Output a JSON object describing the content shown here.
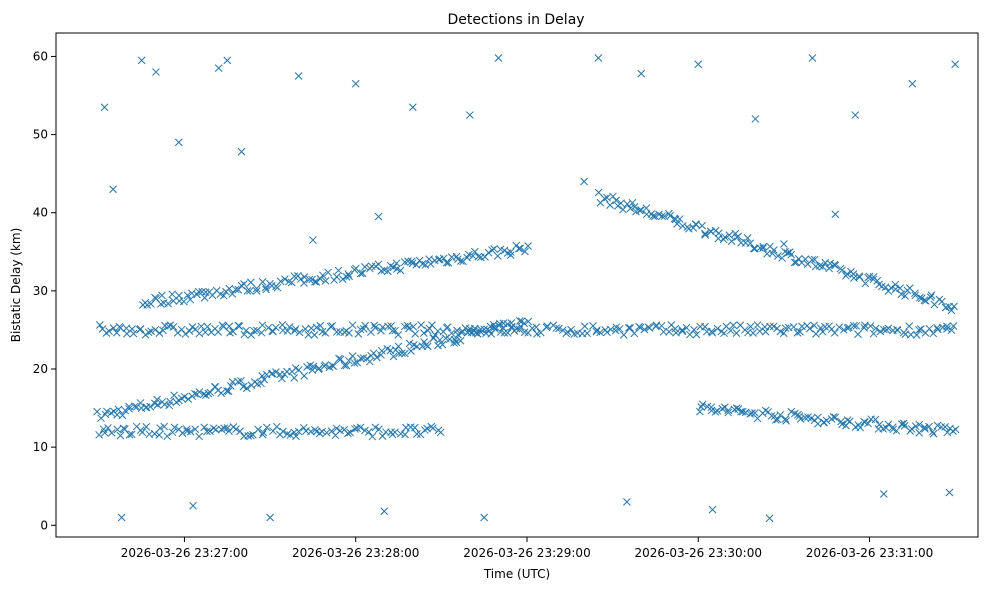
{
  "chart_data": {
    "type": "scatter",
    "title": "Detections in Delay",
    "xlabel": "Time (UTC)",
    "ylabel": "Bistatic Delay (km)",
    "x_unit": "time",
    "xlim": [
      "2026-03-26 23:26:15",
      "2026-03-26 23:31:38"
    ],
    "ylim": [
      -1.5,
      63
    ],
    "x_ticks": [
      "2026-03-26 23:27:00",
      "2026-03-26 23:28:00",
      "2026-03-26 23:29:00",
      "2026-03-26 23:30:00",
      "2026-03-26 23:31:00"
    ],
    "y_ticks": [
      0,
      10,
      20,
      30,
      40,
      50,
      60
    ],
    "marker": "x",
    "color": "#1f77b4",
    "grid": false,
    "tracks": [
      {
        "from": [
          "2026-03-26 23:26:30",
          14.0
        ],
        "to": [
          "2026-03-26 23:29:00",
          26.0
        ],
        "n": 150
      },
      {
        "from": [
          "2026-03-26 23:26:45",
          28.5
        ],
        "to": [
          "2026-03-26 23:29:00",
          35.5
        ],
        "n": 130
      },
      {
        "from": [
          "2026-03-26 23:29:25",
          42.0
        ],
        "to": [
          "2026-03-26 23:31:30",
          28.0
        ],
        "n": 130
      },
      {
        "from": [
          "2026-03-26 23:30:00",
          15.0
        ],
        "to": [
          "2026-03-26 23:31:30",
          12.0
        ],
        "n": 90
      },
      {
        "from": [
          "2026-03-26 23:26:30",
          12.0
        ],
        "to": [
          "2026-03-26 23:28:30",
          12.0
        ],
        "n": 100
      },
      {
        "from": [
          "2026-03-26 23:26:30",
          25.0
        ],
        "to": [
          "2026-03-26 23:31:30",
          25.0
        ],
        "n": 260
      }
    ],
    "points": [
      [
        "2026-03-26 23:26:32",
        53.5
      ],
      [
        "2026-03-26 23:26:45",
        59.5
      ],
      [
        "2026-03-26 23:26:50",
        58.0
      ],
      [
        "2026-03-26 23:27:15",
        59.5
      ],
      [
        "2026-03-26 23:28:50",
        59.8
      ],
      [
        "2026-03-26 23:29:25",
        59.8
      ],
      [
        "2026-03-26 23:30:00",
        59.0
      ],
      [
        "2026-03-26 23:30:40",
        59.8
      ],
      [
        "2026-03-26 23:31:30",
        59.0
      ],
      [
        "2026-03-26 23:26:35",
        43.0
      ],
      [
        "2026-03-26 23:26:58",
        49.0
      ],
      [
        "2026-03-26 23:27:12",
        58.5
      ],
      [
        "2026-03-26 23:27:20",
        47.8
      ],
      [
        "2026-03-26 23:27:40",
        57.5
      ],
      [
        "2026-03-26 23:28:00",
        56.5
      ],
      [
        "2026-03-26 23:28:20",
        53.5
      ],
      [
        "2026-03-26 23:28:40",
        52.5
      ],
      [
        "2026-03-26 23:29:20",
        44.0
      ],
      [
        "2026-03-26 23:29:40",
        57.8
      ],
      [
        "2026-03-26 23:30:20",
        52.0
      ],
      [
        "2026-03-26 23:30:55",
        52.5
      ],
      [
        "2026-03-26 23:31:15",
        56.5
      ],
      [
        "2026-03-26 23:26:38",
        1.0
      ],
      [
        "2026-03-26 23:27:03",
        2.5
      ],
      [
        "2026-03-26 23:27:30",
        1.0
      ],
      [
        "2026-03-26 23:28:10",
        1.8
      ],
      [
        "2026-03-26 23:28:45",
        1.0
      ],
      [
        "2026-03-26 23:29:35",
        3.0
      ],
      [
        "2026-03-26 23:30:05",
        2.0
      ],
      [
        "2026-03-26 23:30:25",
        0.9
      ],
      [
        "2026-03-26 23:31:05",
        4.0
      ],
      [
        "2026-03-26 23:31:28",
        4.2
      ],
      [
        "2026-03-26 23:28:08",
        39.5
      ],
      [
        "2026-03-26 23:30:48",
        39.8
      ],
      [
        "2026-03-26 23:27:45",
        36.5
      ],
      [
        "2026-03-26 23:30:30",
        36.0
      ]
    ]
  }
}
